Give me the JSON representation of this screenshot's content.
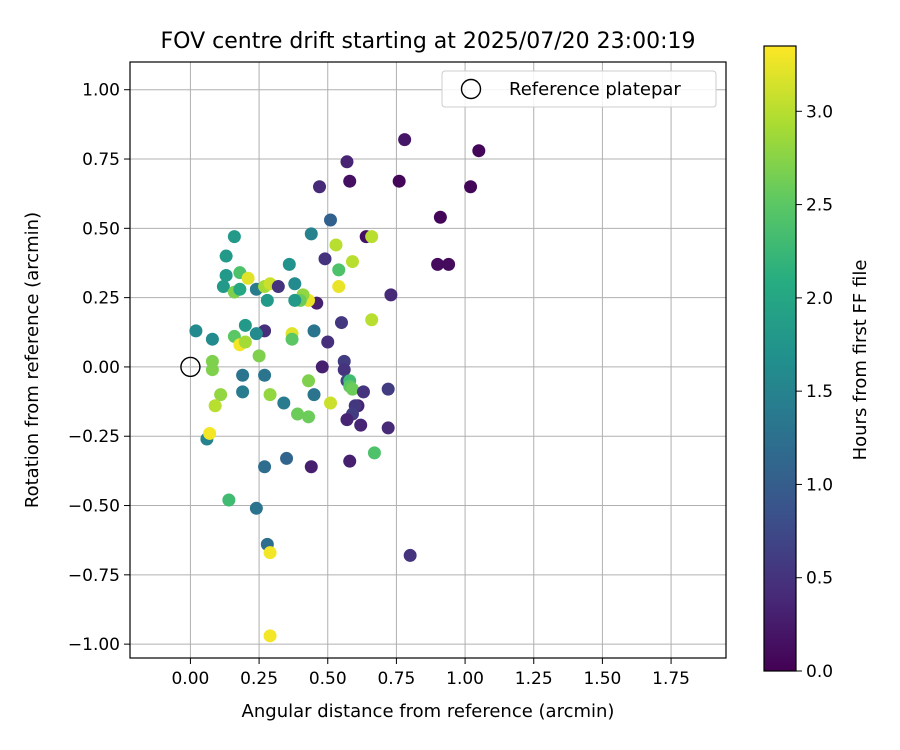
{
  "chart_data": {
    "type": "scatter",
    "title": "FOV centre drift starting at 2025/07/20 23:00:19",
    "xlabel": "Angular distance from reference (arcmin)",
    "ylabel": "Rotation from reference (arcmin)",
    "xlim": [
      -0.22,
      1.95
    ],
    "ylim": [
      -1.05,
      1.1
    ],
    "xticks": [
      "0.00",
      "0.25",
      "0.50",
      "0.75",
      "1.00",
      "1.25",
      "1.50",
      "1.75"
    ],
    "yticks": [
      "−1.00",
      "−0.75",
      "−0.50",
      "−0.25",
      "0.00",
      "0.25",
      "0.50",
      "0.75",
      "1.00"
    ],
    "grid": true,
    "legend_position": "top-right",
    "legend": {
      "label": "Reference platepar",
      "marker": "open-circle"
    },
    "reference_point": {
      "x": 0.0,
      "y": 0.0
    },
    "colorbar": {
      "label": "Hours from first FF file",
      "colormap": "viridis",
      "range": [
        0.0,
        3.35
      ],
      "ticks": [
        "0.0",
        "0.5",
        "1.0",
        "1.5",
        "2.0",
        "2.5",
        "3.0"
      ]
    },
    "points": [
      {
        "x": 1.05,
        "y": 0.78,
        "h": 0.05
      },
      {
        "x": 0.78,
        "y": 0.82,
        "h": 0.2
      },
      {
        "x": 1.02,
        "y": 0.65,
        "h": 0.05
      },
      {
        "x": 0.76,
        "y": 0.67,
        "h": 0.05
      },
      {
        "x": 0.57,
        "y": 0.74,
        "h": 0.35
      },
      {
        "x": 0.58,
        "y": 0.67,
        "h": 0.15
      },
      {
        "x": 0.47,
        "y": 0.65,
        "h": 0.4
      },
      {
        "x": 0.91,
        "y": 0.54,
        "h": 0.05
      },
      {
        "x": 0.9,
        "y": 0.37,
        "h": 0.1
      },
      {
        "x": 0.94,
        "y": 0.37,
        "h": 0.1
      },
      {
        "x": 0.64,
        "y": 0.47,
        "h": 0.15
      },
      {
        "x": 0.73,
        "y": 0.26,
        "h": 0.4
      },
      {
        "x": 0.51,
        "y": 0.53,
        "h": 1.05
      },
      {
        "x": 0.44,
        "y": 0.48,
        "h": 1.5
      },
      {
        "x": 0.53,
        "y": 0.44,
        "h": 3.0
      },
      {
        "x": 0.66,
        "y": 0.47,
        "h": 3.0
      },
      {
        "x": 0.49,
        "y": 0.39,
        "h": 0.5
      },
      {
        "x": 0.54,
        "y": 0.35,
        "h": 2.4
      },
      {
        "x": 0.59,
        "y": 0.38,
        "h": 3.0
      },
      {
        "x": 0.54,
        "y": 0.29,
        "h": 3.25
      },
      {
        "x": 0.46,
        "y": 0.23,
        "h": 0.3
      },
      {
        "x": 0.43,
        "y": 0.24,
        "h": 3.25
      },
      {
        "x": 0.41,
        "y": 0.26,
        "h": 2.8
      },
      {
        "x": 0.4,
        "y": 0.24,
        "h": 2.6
      },
      {
        "x": 0.38,
        "y": 0.24,
        "h": 1.8
      },
      {
        "x": 0.38,
        "y": 0.3,
        "h": 1.6
      },
      {
        "x": 0.36,
        "y": 0.37,
        "h": 1.7
      },
      {
        "x": 0.37,
        "y": 0.12,
        "h": 3.2
      },
      {
        "x": 0.37,
        "y": 0.1,
        "h": 2.5
      },
      {
        "x": 0.45,
        "y": 0.13,
        "h": 1.3
      },
      {
        "x": 0.55,
        "y": 0.16,
        "h": 0.55
      },
      {
        "x": 0.5,
        "y": 0.09,
        "h": 0.45
      },
      {
        "x": 0.66,
        "y": 0.17,
        "h": 3.0
      },
      {
        "x": 0.56,
        "y": 0.02,
        "h": 0.6
      },
      {
        "x": 0.48,
        "y": 0.0,
        "h": 0.3
      },
      {
        "x": 0.56,
        "y": -0.01,
        "h": 0.5
      },
      {
        "x": 0.57,
        "y": -0.05,
        "h": 0.7
      },
      {
        "x": 0.58,
        "y": -0.05,
        "h": 2.3
      },
      {
        "x": 0.58,
        "y": -0.07,
        "h": 2.5
      },
      {
        "x": 0.59,
        "y": -0.08,
        "h": 2.6
      },
      {
        "x": 0.63,
        "y": -0.09,
        "h": 0.5
      },
      {
        "x": 0.72,
        "y": -0.08,
        "h": 0.6
      },
      {
        "x": 0.61,
        "y": -0.14,
        "h": 0.35
      },
      {
        "x": 0.6,
        "y": -0.14,
        "h": 0.55
      },
      {
        "x": 0.59,
        "y": -0.17,
        "h": 0.6
      },
      {
        "x": 0.57,
        "y": -0.19,
        "h": 0.35
      },
      {
        "x": 0.62,
        "y": -0.21,
        "h": 0.35
      },
      {
        "x": 0.72,
        "y": -0.22,
        "h": 0.4
      },
      {
        "x": 0.58,
        "y": -0.34,
        "h": 0.3
      },
      {
        "x": 0.67,
        "y": -0.31,
        "h": 2.4
      },
      {
        "x": 0.44,
        "y": -0.36,
        "h": 0.3
      },
      {
        "x": 0.8,
        "y": -0.68,
        "h": 0.5
      },
      {
        "x": 0.51,
        "y": -0.13,
        "h": 3.1
      },
      {
        "x": 0.45,
        "y": -0.1,
        "h": 1.3
      },
      {
        "x": 0.43,
        "y": -0.05,
        "h": 2.7
      },
      {
        "x": 0.43,
        "y": -0.18,
        "h": 2.6
      },
      {
        "x": 0.39,
        "y": -0.17,
        "h": 2.6
      },
      {
        "x": 0.34,
        "y": -0.13,
        "h": 1.4
      },
      {
        "x": 0.35,
        "y": -0.33,
        "h": 1.1
      },
      {
        "x": 0.27,
        "y": -0.36,
        "h": 1.2
      },
      {
        "x": 0.24,
        "y": -0.51,
        "h": 1.3
      },
      {
        "x": 0.14,
        "y": -0.48,
        "h": 2.3
      },
      {
        "x": 0.28,
        "y": -0.64,
        "h": 1.2
      },
      {
        "x": 0.29,
        "y": -0.67,
        "h": 3.3
      },
      {
        "x": 0.29,
        "y": -0.97,
        "h": 3.3
      },
      {
        "x": 0.29,
        "y": -0.1,
        "h": 2.8
      },
      {
        "x": 0.27,
        "y": -0.03,
        "h": 1.3
      },
      {
        "x": 0.19,
        "y": -0.03,
        "h": 1.3
      },
      {
        "x": 0.19,
        "y": -0.09,
        "h": 1.4
      },
      {
        "x": 0.25,
        "y": 0.04,
        "h": 2.7
      },
      {
        "x": 0.27,
        "y": 0.13,
        "h": 0.45
      },
      {
        "x": 0.24,
        "y": 0.12,
        "h": 1.6
      },
      {
        "x": 0.2,
        "y": 0.15,
        "h": 1.8
      },
      {
        "x": 0.16,
        "y": 0.11,
        "h": 2.5
      },
      {
        "x": 0.18,
        "y": 0.08,
        "h": 3.3
      },
      {
        "x": 0.2,
        "y": 0.09,
        "h": 2.9
      },
      {
        "x": 0.08,
        "y": 0.1,
        "h": 1.6
      },
      {
        "x": 0.02,
        "y": 0.13,
        "h": 1.6
      },
      {
        "x": 0.08,
        "y": 0.02,
        "h": 2.7
      },
      {
        "x": 0.08,
        "y": -0.01,
        "h": 2.7
      },
      {
        "x": 0.11,
        "y": -0.1,
        "h": 2.8
      },
      {
        "x": 0.09,
        "y": -0.14,
        "h": 3.0
      },
      {
        "x": 0.06,
        "y": -0.26,
        "h": 1.5
      },
      {
        "x": 0.07,
        "y": -0.24,
        "h": 3.3
      },
      {
        "x": 0.12,
        "y": 0.29,
        "h": 1.8
      },
      {
        "x": 0.16,
        "y": 0.27,
        "h": 2.7
      },
      {
        "x": 0.18,
        "y": 0.28,
        "h": 2.0
      },
      {
        "x": 0.13,
        "y": 0.33,
        "h": 1.8
      },
      {
        "x": 0.18,
        "y": 0.34,
        "h": 2.4
      },
      {
        "x": 0.13,
        "y": 0.4,
        "h": 1.8
      },
      {
        "x": 0.16,
        "y": 0.47,
        "h": 1.8
      },
      {
        "x": 0.21,
        "y": 0.32,
        "h": 3.2
      },
      {
        "x": 0.24,
        "y": 0.28,
        "h": 1.4
      },
      {
        "x": 0.27,
        "y": 0.29,
        "h": 2.9
      },
      {
        "x": 0.29,
        "y": 0.3,
        "h": 3.1
      },
      {
        "x": 0.28,
        "y": 0.24,
        "h": 1.8
      },
      {
        "x": 0.32,
        "y": 0.29,
        "h": 0.5
      }
    ]
  }
}
